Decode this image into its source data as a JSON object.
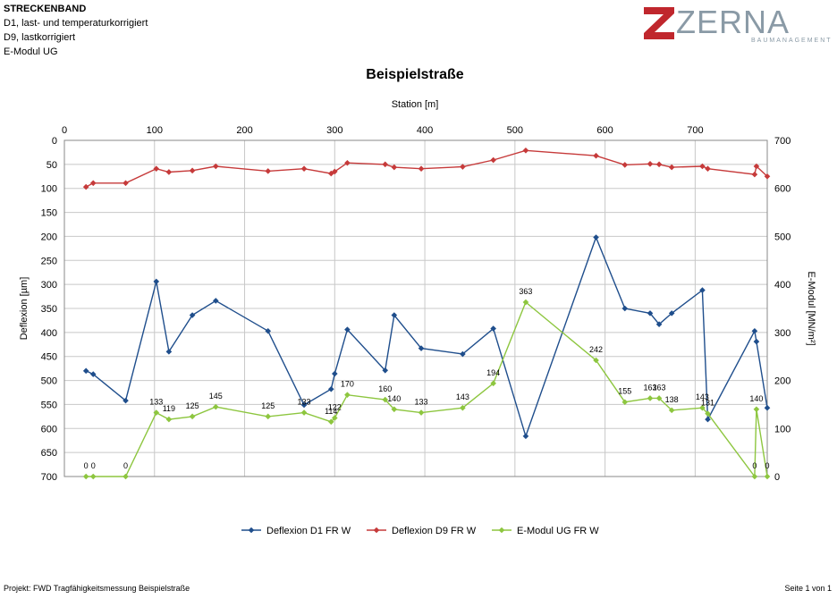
{
  "header": {
    "title": "STRECKENBAND",
    "line2": "D1, last- und temperaturkorrigiert",
    "line3": "D9, lastkorrigiert",
    "line4": "E-Modul UG"
  },
  "logo": {
    "name": "ZERNA",
    "sub": "BAUMANAGEMENT",
    "color": "#c0272d",
    "text_color": "#8a9aa6"
  },
  "footer": {
    "left": "Projekt: FWD Tragfähigkeitsmessung Beispielstraße",
    "right": "Seite 1 von 1"
  },
  "chart_data": {
    "type": "line",
    "title": "Beispielstraße",
    "xlabel": "Station [m]",
    "ylabel": "Deflexion [µm]",
    "y2label": "E-Modul [MN/m²]",
    "xlim": [
      0,
      780
    ],
    "ylim": [
      0,
      700
    ],
    "y_inverted": true,
    "y2lim": [
      0,
      700
    ],
    "x_ticks": [
      "0",
      "100",
      "200",
      "300",
      "400",
      "500",
      "600",
      "700"
    ],
    "y_ticks": [
      "0",
      "50",
      "100",
      "150",
      "200",
      "250",
      "300",
      "350",
      "400",
      "450",
      "500",
      "550",
      "600",
      "650",
      "700"
    ],
    "y2_ticks": [
      "0",
      "100",
      "200",
      "300",
      "400",
      "500",
      "600",
      "700"
    ],
    "grid": true,
    "legend_position": "bottom",
    "series": [
      {
        "name": "Deflexion D1 FR W",
        "axis": "left",
        "color": "#1f4e8c",
        "marker": "diamond",
        "x": [
          24,
          32,
          68,
          102,
          116,
          142,
          168,
          226,
          266,
          296,
          300,
          314,
          356,
          366,
          396,
          442,
          476,
          512,
          590,
          622,
          650,
          660,
          674,
          708,
          714,
          766,
          768,
          780
        ],
        "y": [
          480,
          487,
          542,
          294,
          440,
          364,
          334,
          397,
          551,
          518,
          486,
          394,
          479,
          364,
          433,
          445,
          392,
          616,
          202,
          350,
          360,
          383,
          360,
          312,
          581,
          397,
          419,
          557
        ]
      },
      {
        "name": "Deflexion D9 FR W",
        "axis": "left",
        "color": "#c63a3a",
        "marker": "diamond",
        "x": [
          24,
          32,
          68,
          102,
          116,
          142,
          168,
          226,
          266,
          296,
          300,
          314,
          356,
          366,
          396,
          442,
          476,
          512,
          590,
          622,
          650,
          660,
          674,
          708,
          714,
          766,
          768,
          780
        ],
        "y": [
          97,
          89,
          89,
          59,
          66,
          63,
          54,
          64,
          59,
          69,
          65,
          47,
          50,
          56,
          59,
          55,
          41,
          21,
          32,
          51,
          49,
          50,
          56,
          54,
          59,
          71,
          54,
          75
        ]
      },
      {
        "name": "E-Modul UG FR W",
        "axis": "right",
        "color": "#8dc63f",
        "marker": "diamond",
        "x": [
          24,
          32,
          68,
          102,
          116,
          142,
          168,
          226,
          266,
          296,
          300,
          314,
          356,
          366,
          396,
          442,
          476,
          512,
          590,
          622,
          650,
          660,
          674,
          708,
          714,
          766,
          768,
          780
        ],
        "y": [
          0,
          0,
          0,
          133,
          119,
          125,
          145,
          125,
          133,
          114,
          122,
          170,
          160,
          140,
          133,
          143,
          194,
          363,
          242,
          155,
          163,
          163,
          138,
          143,
          131,
          0,
          140,
          0
        ],
        "labels": [
          "0",
          "0",
          "0",
          "133",
          "119",
          "125",
          "145",
          "125",
          "133",
          "114",
          "122",
          "170",
          "160",
          "140",
          "133",
          "143",
          "194",
          "363",
          "242",
          "155",
          "163",
          "163",
          "138",
          "143",
          "131",
          "0",
          "140",
          "0"
        ]
      }
    ]
  }
}
